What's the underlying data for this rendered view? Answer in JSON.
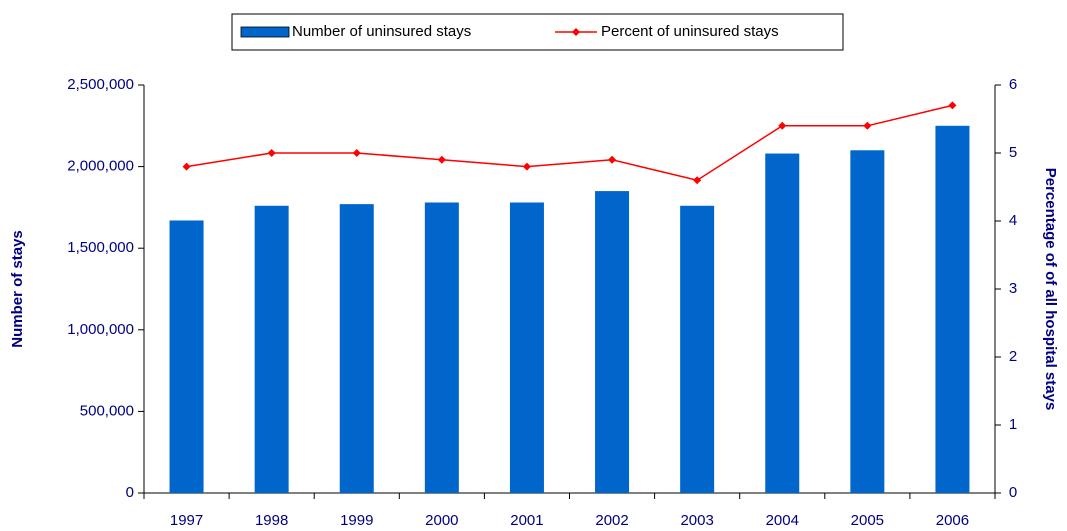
{
  "chart_data": {
    "type": "bar",
    "categories": [
      "1997",
      "1998",
      "1999",
      "2000",
      "2001",
      "2002",
      "2003",
      "2004",
      "2005",
      "2006"
    ],
    "series": [
      {
        "name": "Number of uninsured stays",
        "type": "bar",
        "color": "#0066cc",
        "values": [
          1670000,
          1760000,
          1770000,
          1780000,
          1780000,
          1850000,
          1760000,
          2080000,
          2100000,
          2250000
        ]
      },
      {
        "name": "Percent of uninsured stays",
        "type": "line",
        "axis": "y2",
        "color": "#ff0000",
        "values": [
          4.8,
          5.0,
          5.0,
          4.9,
          4.8,
          4.9,
          4.6,
          5.4,
          5.4,
          5.7
        ]
      }
    ],
    "y_label": "Number of stays",
    "y2_label": "Percentage of of all hospital stays",
    "ylim": [
      0,
      2500000
    ],
    "yticks": [
      0,
      {
        "value": 500000,
        "label": "500,000"
      },
      {
        "value": 1000000,
        "label": "1,000,000"
      },
      {
        "value": 1500000,
        "label": "1,500,000"
      },
      {
        "value": 2000000,
        "label": "2,000,000"
      },
      {
        "value": 2500000,
        "label": "2,500,000"
      }
    ],
    "y2lim": [
      0,
      6
    ],
    "y2ticks": [
      0,
      1,
      2,
      3,
      4,
      5,
      6
    ],
    "grid": false,
    "legend": "top"
  }
}
